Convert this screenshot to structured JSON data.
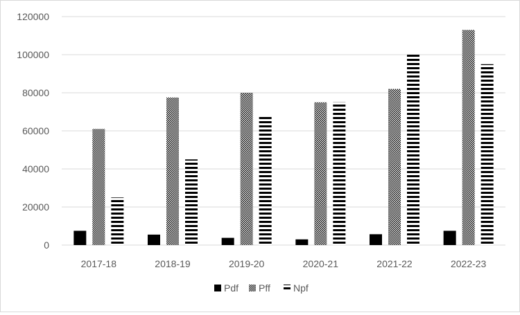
{
  "chart_data": {
    "type": "bar",
    "title": "",
    "xlabel": "",
    "ylabel": "",
    "categories": [
      "2017-18",
      "2018-19",
      "2019-20",
      "2020-21",
      "2021-22",
      "2022-23"
    ],
    "ylim": [
      0,
      120000
    ],
    "yticks": [
      0,
      20000,
      40000,
      60000,
      80000,
      100000,
      120000
    ],
    "grid": true,
    "legend_position": "bottom",
    "series": [
      {
        "name": "Pdf",
        "pattern": "solid",
        "color": "#000000",
        "values": [
          7500,
          5500,
          3800,
          3000,
          5700,
          7500
        ]
      },
      {
        "name": "Pff",
        "pattern": "dotted",
        "color": "#000000",
        "values": [
          61000,
          77500,
          80000,
          75000,
          82000,
          113000
        ]
      },
      {
        "name": "Npf",
        "pattern": "horizontal-lines",
        "color": "#000000",
        "values": [
          25000,
          45000,
          68000,
          75000,
          100000,
          95000
        ]
      }
    ]
  }
}
